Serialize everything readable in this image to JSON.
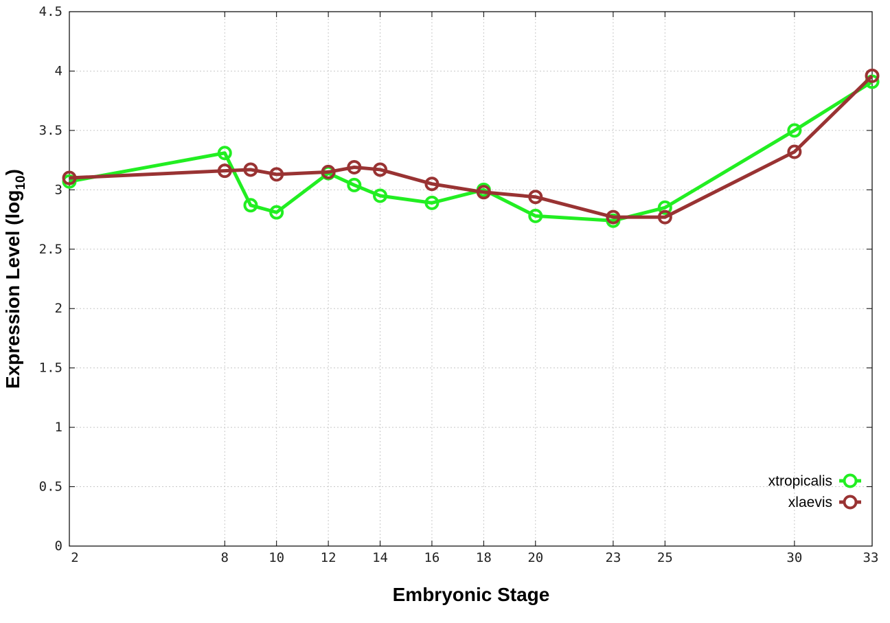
{
  "chart_data": {
    "type": "line",
    "xlabel": "Embryonic Stage",
    "ylabel_main": "Expression Level (log",
    "ylabel_sub": "10",
    "ylabel_close": ")",
    "xlim": [
      2,
      33
    ],
    "ylim": [
      0,
      4.5
    ],
    "x": [
      2,
      8,
      9,
      10,
      12,
      13,
      14,
      16,
      18,
      20,
      23,
      25,
      30,
      33
    ],
    "x_tick_labels": [
      "2",
      "8",
      "10",
      "12",
      "14",
      "16",
      "18",
      "20",
      "23",
      "25",
      "30",
      "33"
    ],
    "x_ticks": [
      2,
      8,
      10,
      12,
      14,
      16,
      18,
      20,
      23,
      25,
      30,
      33
    ],
    "y_ticks": [
      0,
      0.5,
      1,
      1.5,
      2,
      2.5,
      3,
      3.5,
      4,
      4.5
    ],
    "y_tick_labels": [
      "0",
      "0.5",
      "1",
      "1.5",
      "2",
      "2.5",
      "3",
      "3.5",
      "4",
      "4.5"
    ],
    "grid": true,
    "legend_position": "bottom-right",
    "series": [
      {
        "name": "xtropicalis",
        "color": "#22ee22",
        "values": [
          3.07,
          3.31,
          2.87,
          2.81,
          3.14,
          3.04,
          2.95,
          2.89,
          3.0,
          2.78,
          2.74,
          2.85,
          3.5,
          3.91
        ]
      },
      {
        "name": "xlaevis",
        "color": "#993333",
        "values": [
          3.1,
          3.16,
          3.17,
          3.13,
          3.15,
          3.19,
          3.17,
          3.05,
          2.98,
          2.94,
          2.77,
          2.77,
          3.32,
          3.96
        ]
      }
    ]
  }
}
